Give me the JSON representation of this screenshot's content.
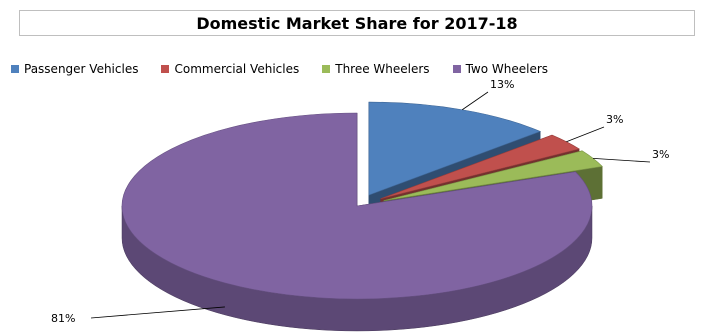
{
  "chart_data": {
    "type": "pie",
    "title": "Domestic Market Share for 2017-18",
    "categories": [
      "Passenger Vehicles",
      "Commercial Vehicles",
      "Three Wheelers",
      "Two Wheelers"
    ],
    "values": [
      13,
      3,
      3,
      81
    ],
    "data_labels": [
      "13%",
      "3%",
      "3%",
      "81%"
    ],
    "colors": [
      "#4f81bd",
      "#c0504d",
      "#9bbb59",
      "#8064a2"
    ],
    "legend_position": "top",
    "style": "3d-exploded"
  }
}
